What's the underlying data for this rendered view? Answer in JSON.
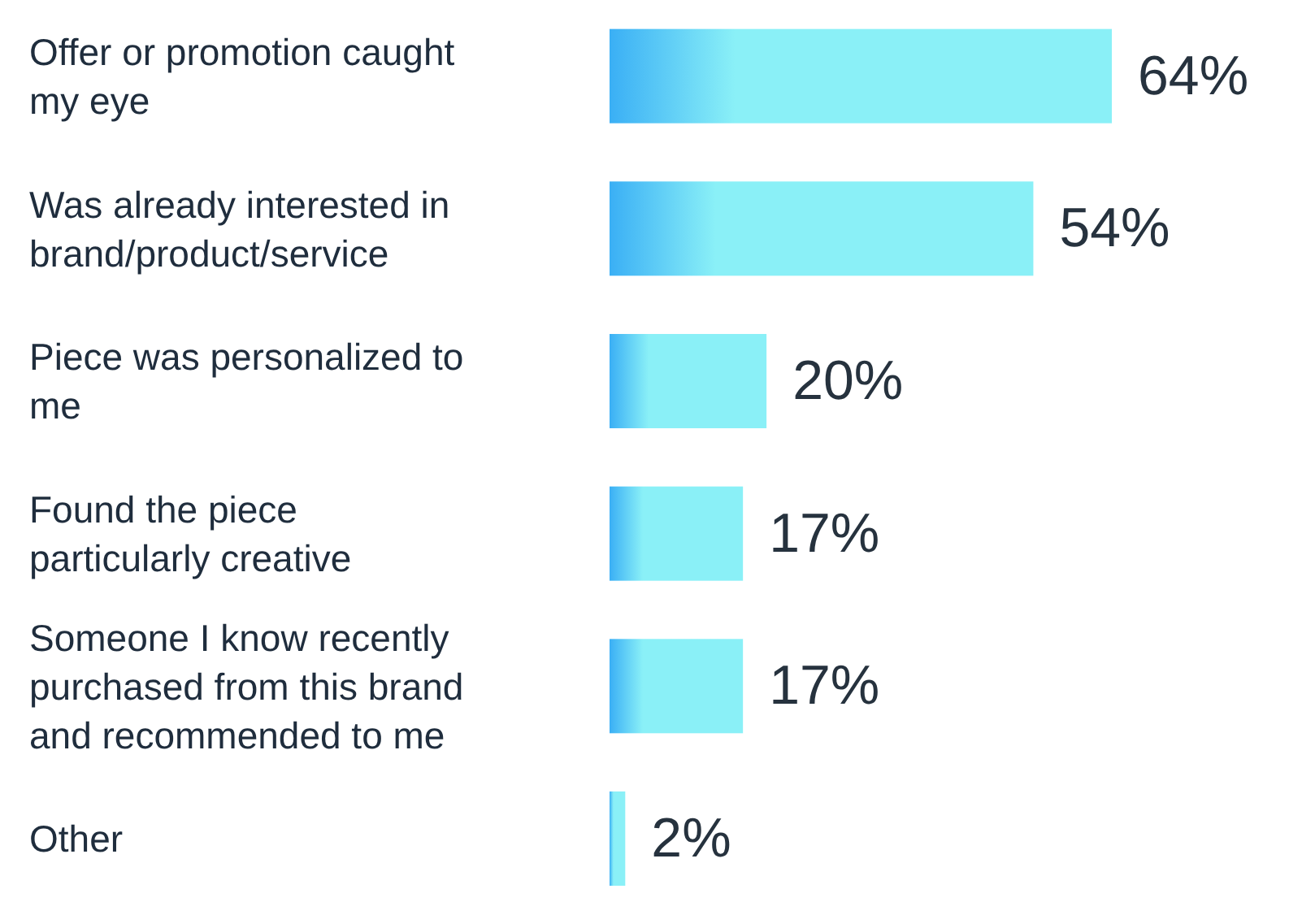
{
  "chart_data": {
    "type": "bar",
    "orientation": "horizontal",
    "categories": [
      "Offer or promotion caught my eye",
      "Was already interested in brand/product/service",
      "Piece was personalized to me",
      "Found the piece particularly creative",
      "Someone I know recently purchased from this brand and recommended to me",
      "Other"
    ],
    "values": [
      64,
      54,
      20,
      17,
      17,
      2
    ],
    "color": "#8af0f7",
    "data_labels": true,
    "value_labels": [
      "64%",
      "54%",
      "20%",
      "17%",
      "17%",
      "2%"
    ],
    "grid": false,
    "legend": false
  }
}
